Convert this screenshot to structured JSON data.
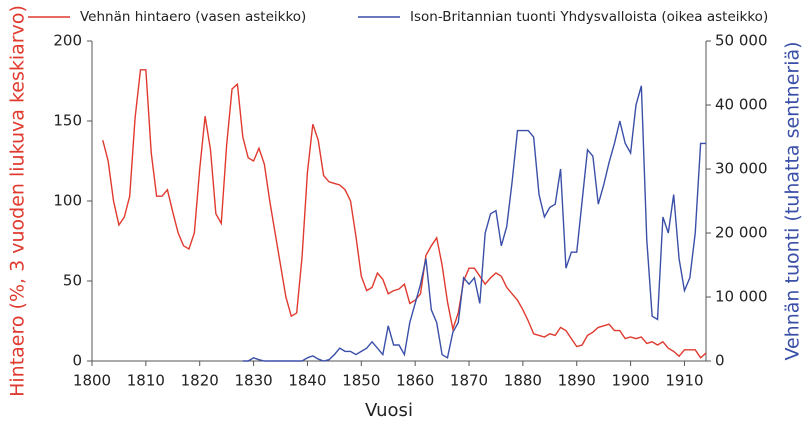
{
  "chart_data": {
    "type": "line",
    "xlabel": "Vuosi",
    "ylabel": "Hintaero (%, 3 vuoden liukuva keskiarvo)",
    "y2label": "Vehnän tuonti (tuhatta sentneriä)",
    "x": [
      1802,
      1803,
      1804,
      1805,
      1806,
      1807,
      1808,
      1809,
      1810,
      1811,
      1812,
      1813,
      1814,
      1815,
      1816,
      1817,
      1818,
      1819,
      1820,
      1821,
      1822,
      1823,
      1824,
      1825,
      1826,
      1827,
      1828,
      1829,
      1830,
      1831,
      1832,
      1833,
      1834,
      1835,
      1836,
      1837,
      1838,
      1839,
      1840,
      1841,
      1842,
      1843,
      1844,
      1845,
      1846,
      1847,
      1848,
      1849,
      1850,
      1851,
      1852,
      1853,
      1854,
      1855,
      1856,
      1857,
      1858,
      1859,
      1860,
      1861,
      1862,
      1863,
      1864,
      1865,
      1866,
      1867,
      1868,
      1869,
      1870,
      1871,
      1872,
      1873,
      1874,
      1875,
      1876,
      1877,
      1878,
      1879,
      1880,
      1881,
      1882,
      1883,
      1884,
      1885,
      1886,
      1887,
      1888,
      1889,
      1890,
      1891,
      1892,
      1893,
      1894,
      1895,
      1896,
      1897,
      1898,
      1899,
      1900,
      1901,
      1902,
      1903,
      1904,
      1905,
      1906,
      1907,
      1908,
      1909,
      1910,
      1911,
      1912,
      1913,
      1914
    ],
    "series": [
      {
        "name": "Vehnän hintaero (vasen asteikko)",
        "color": "#e03a2f",
        "axis": "y",
        "values": [
          138,
          125,
          100,
          85,
          90,
          103,
          152,
          182,
          182,
          130,
          103,
          103,
          107,
          93,
          80,
          72,
          70,
          80,
          120,
          153,
          132,
          92,
          86,
          135,
          170,
          173,
          140,
          127,
          125,
          133,
          123,
          100,
          80,
          60,
          40,
          28,
          30,
          65,
          118,
          148,
          138,
          116,
          112,
          111,
          110,
          107,
          100,
          78,
          53,
          44,
          46,
          55,
          51,
          42,
          44,
          45,
          48,
          36,
          38,
          42,
          66,
          72,
          77,
          60,
          37,
          20,
          30,
          50,
          58,
          58,
          53,
          48,
          52,
          55,
          53,
          46,
          42,
          38,
          32,
          25,
          17,
          16,
          15,
          17,
          16,
          21,
          19,
          14,
          9,
          10,
          16,
          18,
          21,
          22,
          23,
          19,
          19,
          14,
          15,
          14,
          15,
          11,
          12,
          10,
          12,
          8,
          6,
          3,
          7,
          7,
          7,
          2,
          5
        ]
      },
      {
        "name": "Ison-Britannian tuonti Yhdysvalloista (oikea asteikko)",
        "color": "#3a4fa8",
        "axis": "y2",
        "values": [
          null,
          null,
          null,
          null,
          null,
          null,
          null,
          null,
          null,
          null,
          null,
          null,
          null,
          null,
          null,
          null,
          null,
          null,
          null,
          null,
          null,
          null,
          null,
          null,
          null,
          null,
          0,
          0,
          500,
          200,
          0,
          0,
          0,
          0,
          0,
          0,
          0,
          0,
          500,
          800,
          300,
          0,
          200,
          1000,
          2000,
          1500,
          1500,
          1000,
          1500,
          2000,
          3000,
          2000,
          1000,
          5500,
          2500,
          2500,
          1000,
          6000,
          9000,
          12000,
          16000,
          8000,
          6000,
          1000,
          500,
          4500,
          6000,
          13000,
          12000,
          13000,
          9000,
          20000,
          23000,
          23500,
          18000,
          21000,
          28000,
          36000,
          36000,
          36000,
          35000,
          26000,
          22500,
          24000,
          24500,
          30000,
          14500,
          17000,
          17000,
          25000,
          33000,
          32000,
          24500,
          27500,
          31000,
          34000,
          37500,
          34000,
          32500,
          40000,
          43000,
          19000,
          7000,
          6500,
          22500,
          20000,
          26000,
          16000,
          11000,
          13000,
          20000,
          34000,
          34000
        ]
      }
    ],
    "xlim": [
      1800,
      1914
    ],
    "xticks": [
      1800,
      1810,
      1820,
      1830,
      1840,
      1850,
      1860,
      1870,
      1880,
      1890,
      1900,
      1910
    ],
    "ylim": [
      0,
      200
    ],
    "yticks": [
      0,
      50,
      100,
      150,
      200
    ],
    "y2lim": [
      0,
      50000
    ],
    "y2ticks": [
      0,
      {
        "value": 10000,
        "label": "10 000"
      },
      {
        "value": 20000,
        "label": "20 000"
      },
      {
        "value": 30000,
        "label": "30 000"
      },
      {
        "value": 40000,
        "label": "40 000"
      },
      {
        "value": 50000,
        "label": "50 000"
      }
    ]
  }
}
